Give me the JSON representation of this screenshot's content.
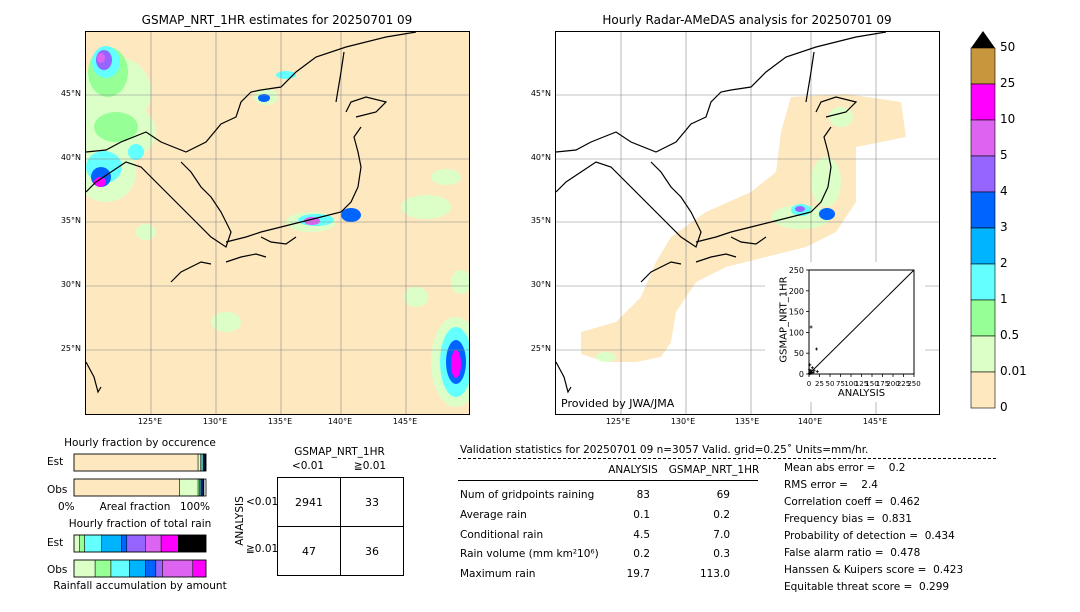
{
  "left_map": {
    "title": "GSMAP_NRT_1HR estimates for 20250701 09",
    "lat_labels": [
      "45°N",
      "40°N",
      "35°N",
      "30°N",
      "25°N"
    ],
    "lon_labels": [
      "125°E",
      "130°E",
      "135°E",
      "140°E",
      "145°E"
    ]
  },
  "right_map": {
    "title": "Hourly Radar-AMeDAS analysis for 20250701 09",
    "lat_labels": [
      "45°N",
      "40°N",
      "35°N",
      "30°N",
      "25°N"
    ],
    "lon_labels": [
      "125°E",
      "130°E",
      "135°E",
      "140°E",
      "145°E"
    ],
    "credit": "Provided by JWA/JMA"
  },
  "colorbar": {
    "labels": [
      "50",
      "25",
      "10",
      "5",
      "4",
      "3",
      "2",
      "1",
      "0.5",
      "0.01",
      "0"
    ],
    "colors": [
      "#c8963c",
      "#ff00ff",
      "#dc64f0",
      "#9664ff",
      "#0064ff",
      "#00b4ff",
      "#64ffff",
      "#96ff96",
      "#dcffc8",
      "#fde8c0"
    ],
    "extend_color": "#000000"
  },
  "chart_data": [
    {
      "type": "scatter",
      "title": "",
      "xlabel": "ANALYSIS",
      "ylabel": "GSMAP_NRT_1HR",
      "xlim": [
        0,
        250
      ],
      "ylim": [
        0,
        250
      ],
      "xticks": [
        "0",
        "25",
        "50",
        "75",
        "100",
        "125",
        "150",
        "175",
        "200",
        "225",
        "250"
      ],
      "yticks": [
        "0",
        "50",
        "100",
        "150",
        "200",
        "250"
      ],
      "points": [
        [
          0.5,
          0.3
        ],
        [
          1,
          2
        ],
        [
          2,
          1
        ],
        [
          3,
          5
        ],
        [
          4,
          2
        ],
        [
          5,
          8
        ],
        [
          6,
          3
        ],
        [
          8,
          15
        ],
        [
          10,
          4
        ],
        [
          12,
          9
        ],
        [
          18,
          60
        ],
        [
          5,
          113
        ],
        [
          19.7,
          6
        ],
        [
          2,
          22
        ],
        [
          1,
          10
        ]
      ],
      "reference_line": "y = x"
    },
    {
      "type": "bar",
      "title": "Hourly fraction by occurence",
      "categories": [
        "Est",
        "Obs"
      ],
      "xlabel": "Areal fraction",
      "x_tick_labels": [
        "0%",
        "100%"
      ],
      "series": [
        {
          "color": "#fde8c0",
          "values": [
            0.94,
            0.8
          ]
        },
        {
          "color": "#dcffc8",
          "values": [
            0.02,
            0.14
          ]
        },
        {
          "color": "#96ff96",
          "values": [
            0.01,
            0.01
          ]
        },
        {
          "color": "#64ffff",
          "values": [
            0.01,
            0.01
          ]
        },
        {
          "color": "#00b4ff",
          "values": [
            0.005,
            0.005
          ]
        },
        {
          "color": "#0064ff",
          "values": [
            0.005,
            0.01
          ]
        },
        {
          "color": "#000000",
          "values": [
            0.01,
            0.01
          ]
        }
      ]
    },
    {
      "type": "bar",
      "title": "Hourly fraction of total rain",
      "categories": [
        "Est",
        "Obs"
      ],
      "xlabel": "Rainfall accumulation by amount",
      "series": [
        {
          "color": "#dcffc8",
          "values": [
            0.04,
            0.16
          ]
        },
        {
          "color": "#96ff96",
          "values": [
            0.04,
            0.12
          ]
        },
        {
          "color": "#64ffff",
          "values": [
            0.13,
            0.14
          ]
        },
        {
          "color": "#00b4ff",
          "values": [
            0.15,
            0.12
          ]
        },
        {
          "color": "#0064ff",
          "values": [
            0.04,
            0.08
          ]
        },
        {
          "color": "#9664ff",
          "values": [
            0.14,
            0.05
          ]
        },
        {
          "color": "#dc64f0",
          "values": [
            0.12,
            0.23
          ]
        },
        {
          "color": "#ff00ff",
          "values": [
            0.13,
            0.1
          ]
        },
        {
          "color": "#000000",
          "values": [
            0.21,
            0.0
          ]
        }
      ]
    }
  ],
  "contingency": {
    "title": "GSMAP_NRT_1HR",
    "col_headers": [
      "<0.01",
      "≧0.01"
    ],
    "row_axis": "ANALYSIS",
    "row_headers": [
      "<0.01",
      "≧0.01"
    ],
    "cells": [
      [
        "2941",
        "33"
      ],
      [
        "47",
        "36"
      ]
    ]
  },
  "stats": {
    "header": "Validation statistics for 20250701 09  n=3057 Valid. grid=0.25˚ Units=mm/hr.",
    "col_analysis": "ANALYSIS",
    "col_gsmap": "GSMAP_NRT_1HR",
    "rows": [
      {
        "label": "Num of gridpoints raining",
        "a": "83",
        "g": "69"
      },
      {
        "label": "Average rain",
        "a": "0.1",
        "g": "0.2"
      },
      {
        "label": "Conditional rain",
        "a": "4.5",
        "g": "7.0"
      },
      {
        "label": "Rain volume (mm km²10⁶)",
        "a": "0.2",
        "g": "0.3"
      },
      {
        "label": "Maximum rain",
        "a": "19.7",
        "g": "113.0"
      }
    ],
    "scores": [
      "Mean abs error =    0.2",
      "RMS error =    2.4",
      "Correlation coeff =  0.462",
      "Frequency bias =  0.831",
      "Probability of detection =  0.434",
      "False alarm ratio =  0.478",
      "Hanssen & Kuipers score =  0.423",
      "Equitable threat score =  0.299"
    ]
  }
}
